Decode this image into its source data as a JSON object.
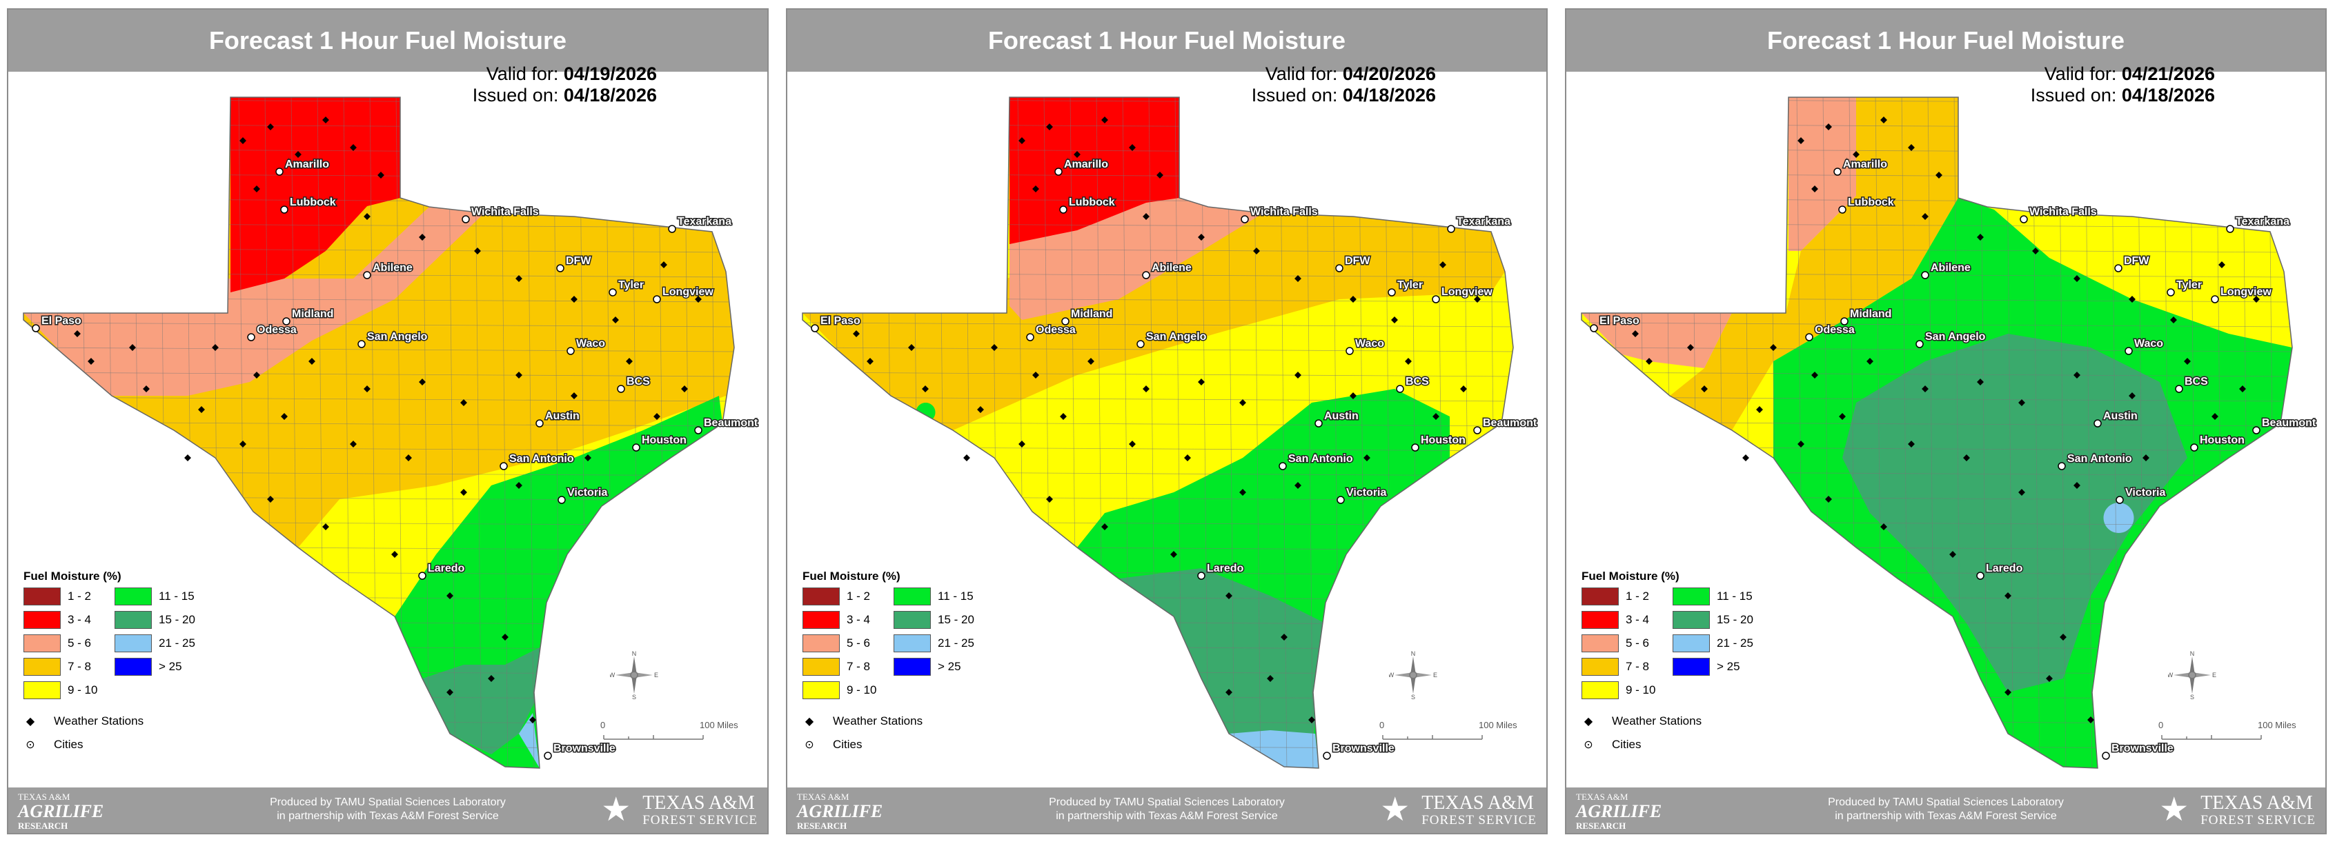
{
  "panels": [
    {
      "title": "Forecast 1 Hour Fuel Moisture",
      "valid_label": "Valid for:",
      "valid_date": "04/19/2026",
      "issued_label": "Issued on:",
      "issued_date": "04/18/2026",
      "fill_colors": [
        "#ff0000",
        "#f9a07f",
        "#f9c800",
        "#ffff00",
        "#00e827",
        "#3aaa6c",
        "#88c7f2"
      ]
    },
    {
      "title": "Forecast 1 Hour Fuel Moisture",
      "valid_label": "Valid for:",
      "valid_date": "04/20/2026",
      "issued_label": "Issued on:",
      "issued_date": "04/18/2026",
      "fill_colors": [
        "#ff0000",
        "#f9a07f",
        "#f9c800",
        "#ffff00",
        "#00e827",
        "#3aaa6c",
        "#88c7f2"
      ]
    },
    {
      "title": "Forecast 1 Hour Fuel Moisture",
      "valid_label": "Valid for:",
      "valid_date": "04/21/2026",
      "issued_label": "Issued on:",
      "issued_date": "04/18/2026",
      "fill_colors": [
        "#f9a07f",
        "#f9c800",
        "#ffff00",
        "#00e827",
        "#3aaa6c",
        "#88c7f2"
      ]
    }
  ],
  "cities": [
    "Amarillo",
    "Lubbock",
    "Wichita Falls",
    "Texarkana",
    "El Paso",
    "Midland",
    "Odessa",
    "Abilene",
    "DFW",
    "Tyler",
    "Longview",
    "San Angelo",
    "Waco",
    "BCS",
    "Austin",
    "Beaumont",
    "Houston",
    "San Antonio",
    "Victoria",
    "Laredo",
    "Brownsville"
  ],
  "legend": {
    "title": "Fuel Moisture (%)",
    "items": [
      {
        "label": "1 - 2",
        "color": "#a31d1d"
      },
      {
        "label": "11 - 15",
        "color": "#00e827"
      },
      {
        "label": "3 - 4",
        "color": "#ff0000"
      },
      {
        "label": "15 - 20",
        "color": "#3aaa6c"
      },
      {
        "label": "5 - 6",
        "color": "#f9a07f"
      },
      {
        "label": "21 - 25",
        "color": "#88c7f2"
      },
      {
        "label": "7 - 8",
        "color": "#f9c800"
      },
      {
        "label": "> 25",
        "color": "#0000ff"
      },
      {
        "label": "9 - 10",
        "color": "#ffff00"
      }
    ],
    "stations_label": "Weather Stations",
    "cities_label": "Cities"
  },
  "scale": {
    "start": "0",
    "end": "100 Miles"
  },
  "compass": {
    "n": "N",
    "s": "S",
    "e": "E",
    "w": "W"
  },
  "footer": {
    "line1": "Produced by TAMU Spatial Sciences Laboratory",
    "line2": "in partnership with Texas A&M Forest Service",
    "left_logo_1": "TEXAS A&M",
    "left_logo_2": "AGRILIFE",
    "left_logo_3": "RESEARCH",
    "right_logo_1": "TEXAS A&M",
    "right_logo_2": "FOREST SERVICE"
  }
}
